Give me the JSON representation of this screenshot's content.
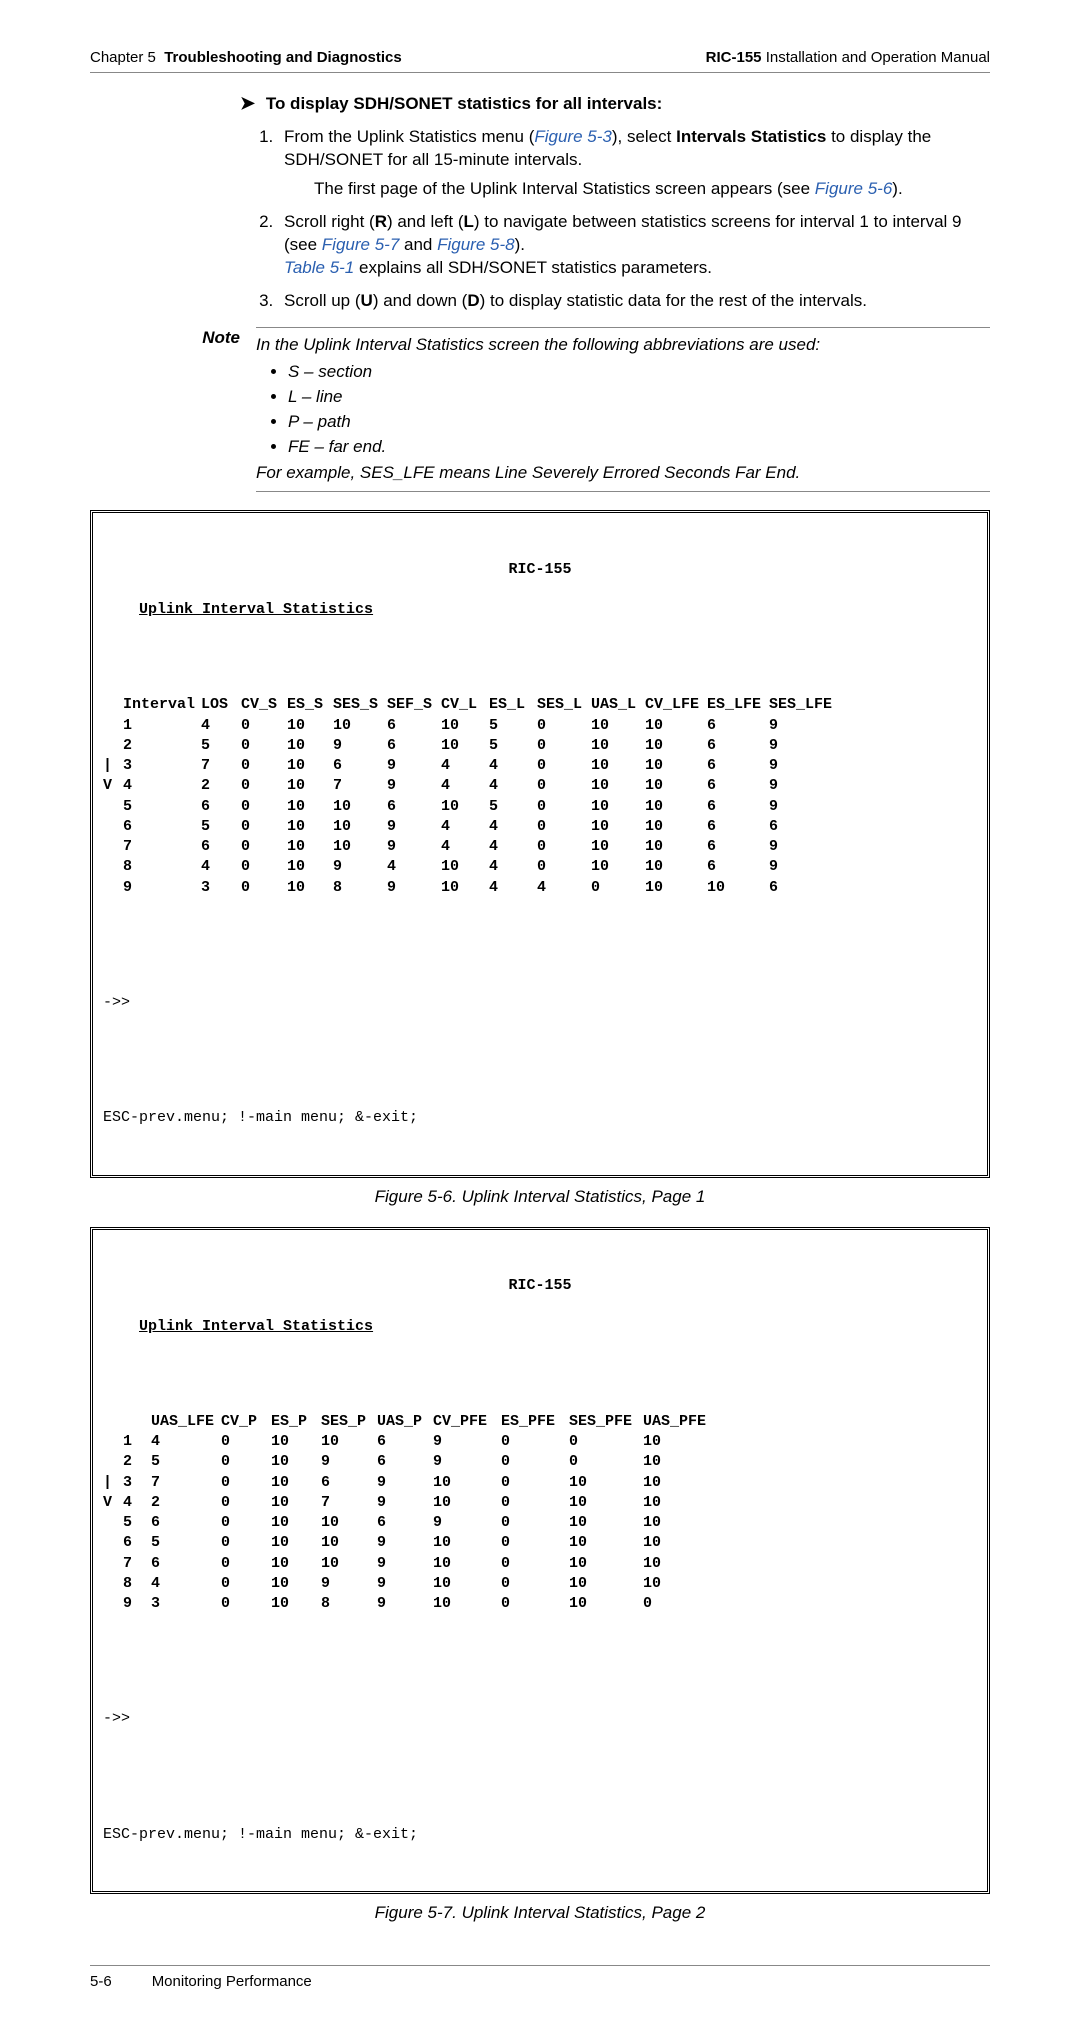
{
  "header": {
    "chapterLabel": "Chapter 5",
    "chapterTitle": "Troubleshooting and Diagnostics",
    "product": "RIC-155",
    "docType": "Installation and Operation Manual"
  },
  "procedure": {
    "title": "To display SDH/SONET statistics for all intervals:",
    "step1_a": "From the Uplink Statistics menu (",
    "step1_link1": "Figure 5-3",
    "step1_b": "), select ",
    "step1_bold": "Intervals Statistics",
    "step1_c": " to display the SDH/SONET for all 15-minute intervals.",
    "step1_sub_a": "The first page of the Uplink Interval Statistics screen appears (see ",
    "step1_sub_link": "Figure 5-6",
    "step1_sub_b": ").",
    "step2_a": "Scroll right (",
    "step2_boldR": "R",
    "step2_b": ") and left (",
    "step2_boldL": "L",
    "step2_c": ") to navigate between statistics screens for interval 1 to interval 9 (see ",
    "step2_link1": "Figure 5-7",
    "step2_d": " and ",
    "step2_link2": "Figure 5-8",
    "step2_e": ").",
    "step2_line2a": "Table 5-1",
    "step2_line2b": " explains all SDH/SONET statistics parameters.",
    "step3_a": "Scroll up (",
    "step3_boldU": "U",
    "step3_b": ") and down (",
    "step3_boldD": "D",
    "step3_c": ") to display statistic data for the rest of the intervals."
  },
  "note": {
    "label": "Note",
    "intro": "In the Uplink Interval Statistics screen the following abbreviations are used:",
    "items": [
      "S – section",
      "L – line",
      "P – path",
      "FE – far end."
    ],
    "outro": "For example, SES_LFE means Line Severely Errored Seconds Far End."
  },
  "terminal1": {
    "device": "RIC-155",
    "title": "Uplink Interval Statistics",
    "headers": [
      "",
      "Interval",
      "LOS",
      "CV_S",
      "ES_S",
      "SES_S",
      "SEF_S",
      "CV_L",
      "ES_L",
      "SES_L",
      "UAS_L",
      "CV_LFE",
      "ES_LFE",
      "SES_LFE"
    ],
    "rows": [
      [
        "",
        "1",
        "4",
        "0",
        "10",
        "10",
        "6",
        "10",
        "5",
        "0",
        "10",
        "10",
        "6",
        "9"
      ],
      [
        "",
        "2",
        "5",
        "0",
        "10",
        "9",
        "6",
        "10",
        "5",
        "0",
        "10",
        "10",
        "6",
        "9"
      ],
      [
        "|",
        "3",
        "7",
        "0",
        "10",
        "6",
        "9",
        "4",
        "4",
        "0",
        "10",
        "10",
        "6",
        "9"
      ],
      [
        "V",
        "4",
        "2",
        "0",
        "10",
        "7",
        "9",
        "4",
        "4",
        "0",
        "10",
        "10",
        "6",
        "9"
      ],
      [
        "",
        "5",
        "6",
        "0",
        "10",
        "10",
        "6",
        "10",
        "5",
        "0",
        "10",
        "10",
        "6",
        "9"
      ],
      [
        "",
        "6",
        "5",
        "0",
        "10",
        "10",
        "9",
        "4",
        "4",
        "0",
        "10",
        "10",
        "6",
        "6"
      ],
      [
        "",
        "7",
        "6",
        "0",
        "10",
        "10",
        "9",
        "4",
        "4",
        "0",
        "10",
        "10",
        "6",
        "9"
      ],
      [
        "",
        "8",
        "4",
        "0",
        "10",
        "9",
        "4",
        "10",
        "4",
        "0",
        "10",
        "10",
        "6",
        "9"
      ],
      [
        "",
        "9",
        "3",
        "0",
        "10",
        "8",
        "9",
        "10",
        "4",
        "4",
        "0",
        "10",
        "10",
        "6"
      ]
    ],
    "prompt": "->>",
    "footer": "ESC-prev.menu; !-main menu; &-exit;"
  },
  "caption1": "Figure 5-6.  Uplink Interval Statistics, Page 1",
  "terminal2": {
    "device": "RIC-155",
    "title": "Uplink Interval Statistics",
    "headers": [
      "",
      "",
      "UAS_LFE",
      "CV_P",
      "ES_P",
      "SES_P",
      "UAS_P",
      "CV_PFE",
      "ES_PFE",
      "SES_PFE",
      "UAS_PFE"
    ],
    "rows": [
      [
        "",
        "1",
        "4",
        "0",
        "10",
        "10",
        "6",
        "9",
        "0",
        "0",
        "10"
      ],
      [
        "",
        "2",
        "5",
        "0",
        "10",
        "9",
        "6",
        "9",
        "0",
        "0",
        "10"
      ],
      [
        "|",
        "3",
        "7",
        "0",
        "10",
        "6",
        "9",
        "10",
        "0",
        "10",
        "10"
      ],
      [
        "V",
        "4",
        "2",
        "0",
        "10",
        "7",
        "9",
        "10",
        "0",
        "10",
        "10"
      ],
      [
        "",
        "5",
        "6",
        "0",
        "10",
        "10",
        "6",
        "9",
        "0",
        "10",
        "10"
      ],
      [
        "",
        "6",
        "5",
        "0",
        "10",
        "10",
        "9",
        "10",
        "0",
        "10",
        "10"
      ],
      [
        "",
        "7",
        "6",
        "0",
        "10",
        "10",
        "9",
        "10",
        "0",
        "10",
        "10"
      ],
      [
        "",
        "8",
        "4",
        "0",
        "10",
        "9",
        "9",
        "10",
        "0",
        "10",
        "10"
      ],
      [
        "",
        "9",
        "3",
        "0",
        "10",
        "8",
        "9",
        "10",
        "0",
        "10",
        "0"
      ]
    ],
    "prompt": "->>",
    "footer": "ESC-prev.menu; !-main menu; &-exit;"
  },
  "caption2": "Figure 5-7.  Uplink Interval Statistics, Page 2",
  "footer": {
    "pageNum": "5-6",
    "section": "Monitoring Performance"
  },
  "styling": {
    "linkColor": "#2a5fb0",
    "ruleColor": "#888888",
    "monoFont": "Courier New",
    "bodyFont": "Segoe UI"
  },
  "colWidths1": [
    14,
    62,
    34,
    40,
    40,
    48,
    48,
    42,
    42,
    48,
    48,
    56,
    56,
    62
  ],
  "colWidths2": [
    14,
    22,
    64,
    44,
    44,
    50,
    50,
    62,
    62,
    68,
    64
  ]
}
